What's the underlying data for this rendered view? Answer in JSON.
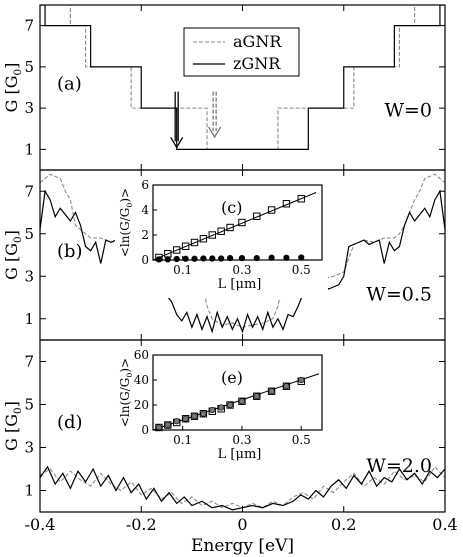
{
  "chart_data": {
    "type": "line",
    "xlabel": "Energy [eV]",
    "xlim": [
      -0.4,
      0.4
    ],
    "xticks": [
      -0.4,
      -0.2,
      0,
      0.2,
      0.4
    ],
    "xtick_labels": [
      "-0.4",
      "-0.2",
      "0",
      "0.2",
      "0.4"
    ],
    "legend": {
      "placement": "top-center",
      "entries": [
        "aGNR",
        "zGNR"
      ]
    },
    "panels": [
      {
        "panel_label": "(a)",
        "annotation": "W=0",
        "ylabel": "G [G",
        "ylabel_sub": "0",
        "ylabel_tail": "]",
        "ylim": [
          0,
          8
        ],
        "yticks": [
          1,
          3,
          5,
          7
        ],
        "series": [
          {
            "name": "aGNR",
            "style": "dashed",
            "x": [
              -0.4,
              -0.34,
              -0.34,
              -0.31,
              -0.31,
              -0.22,
              -0.22,
              -0.07,
              -0.07,
              0.07,
              0.07,
              0.22,
              0.22,
              0.31,
              0.31,
              0.34,
              0.34,
              0.4
            ],
            "y": [
              9,
              9,
              7,
              7,
              5,
              5,
              3,
              3,
              1,
              1,
              3,
              3,
              5,
              5,
              7,
              7,
              9,
              9
            ]
          },
          {
            "name": "zGNR",
            "style": "solid",
            "x": [
              -0.4,
              -0.39,
              -0.39,
              -0.3,
              -0.3,
              -0.2,
              -0.2,
              -0.13,
              -0.13,
              0.13,
              0.13,
              0.2,
              0.2,
              0.3,
              0.3,
              0.39,
              0.39,
              0.4
            ],
            "y": [
              8,
              8,
              7,
              7,
              5,
              5,
              3,
              3,
              1,
              1,
              3,
              3,
              5,
              5,
              7,
              7,
              8,
              8
            ]
          }
        ],
        "arrows": [
          {
            "x": -0.13,
            "y_from": 3.8,
            "y_to": 1.1,
            "style": "solid"
          },
          {
            "x": -0.055,
            "y_from": 3.8,
            "y_to": 1.6,
            "style": "dashed"
          }
        ]
      },
      {
        "panel_label": "(b)",
        "annotation": "W=0.5",
        "ylabel": "G [G",
        "ylabel_sub": "0",
        "ylabel_tail": "]",
        "ylim": [
          0,
          8
        ],
        "yticks": [
          1,
          3,
          5,
          7
        ],
        "series": [
          {
            "name": "aGNR",
            "style": "dashed",
            "x": [
              -0.4,
              -0.38,
              -0.36,
              -0.35,
              -0.34,
              -0.33,
              -0.31,
              -0.3,
              -0.28,
              -0.26,
              -0.24,
              -0.22,
              -0.2,
              -0.18,
              -0.16,
              -0.14,
              -0.12,
              -0.1,
              -0.08,
              -0.07,
              -0.06,
              -0.04,
              -0.02,
              0,
              0.02,
              0.04,
              0.06,
              0.07,
              0.08,
              0.1,
              0.12,
              0.14,
              0.16,
              0.18,
              0.2,
              0.22,
              0.24,
              0.26,
              0.28,
              0.3,
              0.31,
              0.32,
              0.34,
              0.35,
              0.36,
              0.38,
              0.4
            ],
            "y": [
              7.4,
              7.8,
              7.6,
              7.0,
              6.6,
              5.4,
              5.0,
              4.8,
              4.8,
              4.6,
              4.7,
              4.5,
              3.2,
              3.0,
              2.9,
              3.0,
              2.8,
              2.9,
              2.7,
              1.6,
              1.0,
              0.7,
              0.8,
              0.6,
              0.7,
              0.8,
              1.0,
              1.6,
              2.7,
              2.9,
              2.8,
              3.0,
              2.9,
              3.0,
              3.2,
              4.5,
              4.7,
              4.6,
              4.8,
              4.8,
              5.0,
              5.4,
              6.6,
              7.0,
              7.6,
              7.8,
              7.4
            ]
          },
          {
            "name": "zGNR",
            "style": "solid",
            "x": [
              -0.4,
              -0.39,
              -0.38,
              -0.37,
              -0.36,
              -0.35,
              -0.34,
              -0.33,
              -0.32,
              -0.31,
              -0.3,
              -0.29,
              -0.28,
              -0.27,
              -0.26,
              -0.25,
              -0.24,
              -0.23,
              -0.22,
              -0.21,
              -0.2,
              -0.19,
              -0.18,
              -0.17,
              -0.16,
              -0.15,
              -0.14,
              -0.13,
              -0.12,
              -0.11,
              -0.1,
              -0.09,
              -0.08,
              -0.07,
              -0.06,
              -0.05,
              -0.04,
              -0.03,
              -0.02,
              -0.01,
              0,
              0.01,
              0.02,
              0.03,
              0.04,
              0.05,
              0.06,
              0.07,
              0.08,
              0.09,
              0.1,
              0.11,
              0.12,
              0.13,
              0.14,
              0.15,
              0.16,
              0.17,
              0.18,
              0.19,
              0.2,
              0.21,
              0.22,
              0.23,
              0.24,
              0.25,
              0.26,
              0.27,
              0.28,
              0.29,
              0.3,
              0.31,
              0.32,
              0.33,
              0.34,
              0.35,
              0.36,
              0.37,
              0.38,
              0.39,
              0.4
            ],
            "y": [
              5.2,
              7.0,
              6.6,
              5.8,
              6.2,
              5.9,
              5.6,
              6.0,
              5.4,
              4.4,
              4.2,
              4.6,
              3.6,
              4.7,
              4.6,
              4.7,
              4.5,
              4.4,
              3.1,
              2.5,
              2.4,
              2.6,
              2.3,
              2.5,
              2.4,
              2.1,
              1.8,
              1.2,
              0.9,
              1.3,
              0.6,
              1.2,
              0.5,
              1.1,
              0.4,
              1.3,
              0.6,
              1.1,
              0.5,
              1.0,
              0.4,
              1.2,
              0.6,
              1.1,
              0.5,
              1.3,
              0.6,
              1.0,
              0.5,
              1.2,
              1.1,
              1.6,
              2.2,
              2.4,
              2.5,
              2.3,
              2.6,
              2.4,
              2.5,
              2.6,
              3.0,
              4.4,
              4.5,
              4.6,
              4.7,
              4.5,
              4.6,
              4.7,
              3.6,
              4.6,
              4.2,
              4.4,
              5.4,
              6.0,
              5.6,
              5.9,
              6.2,
              5.8,
              6.6,
              7.0,
              5.2
            ]
          }
        ],
        "inset": {
          "panel_label": "(c)",
          "ylabel": "<ln(G/G",
          "ylabel_sub": "0",
          "ylabel_tail": ")>",
          "xlabel": "L [μm]",
          "xlim": [
            0,
            0.57
          ],
          "ylim": [
            0,
            6
          ],
          "xticks": [
            0.1,
            0.3,
            0.5
          ],
          "xtick_labels": [
            "0.1",
            "0.3",
            "0.5"
          ],
          "yticks": [
            0,
            2,
            4,
            6
          ],
          "ytick_labels": [
            "0",
            "2",
            "4",
            "6"
          ],
          "series": [
            {
              "name": "aGNR",
              "marker": "open-square",
              "x": [
                0.02,
                0.05,
                0.08,
                0.11,
                0.14,
                0.17,
                0.2,
                0.23,
                0.26,
                0.3,
                0.35,
                0.4,
                0.45,
                0.5
              ],
              "y": [
                0.2,
                0.5,
                0.8,
                1.1,
                1.4,
                1.7,
                2.0,
                2.3,
                2.6,
                3.0,
                3.5,
                4.0,
                4.5,
                4.9
              ]
            },
            {
              "name": "zGNR",
              "marker": "filled-circle",
              "x": [
                0.02,
                0.05,
                0.08,
                0.11,
                0.14,
                0.17,
                0.2,
                0.23,
                0.26,
                0.3,
                0.35,
                0.4,
                0.45,
                0.5
              ],
              "y": [
                0.05,
                0.05,
                0.08,
                0.1,
                0.1,
                0.12,
                0.12,
                0.12,
                0.15,
                0.15,
                0.15,
                0.18,
                0.18,
                0.2
              ]
            }
          ],
          "fit_line": {
            "x": [
              0,
              0.55
            ],
            "y": [
              0,
              5.4
            ]
          }
        }
      },
      {
        "panel_label": "(d)",
        "annotation": "W=2.0",
        "ylabel": "G [G",
        "ylabel_sub": "0",
        "ylabel_tail": "]",
        "ylim": [
          0,
          8
        ],
        "yticks": [
          1,
          3,
          5,
          7
        ],
        "series": [
          {
            "name": "aGNR",
            "style": "dashed",
            "x": [
              -0.4,
              -0.38,
              -0.36,
              -0.34,
              -0.32,
              -0.3,
              -0.28,
              -0.26,
              -0.24,
              -0.22,
              -0.2,
              -0.18,
              -0.16,
              -0.14,
              -0.12,
              -0.1,
              -0.08,
              -0.06,
              -0.04,
              -0.02,
              0,
              0.02,
              0.04,
              0.06,
              0.08,
              0.1,
              0.12,
              0.14,
              0.16,
              0.18,
              0.2,
              0.22,
              0.24,
              0.26,
              0.28,
              0.3,
              0.32,
              0.34,
              0.36,
              0.38,
              0.4
            ],
            "y": [
              1.7,
              2.0,
              1.4,
              1.9,
              1.5,
              1.2,
              1.8,
              1.3,
              1.0,
              1.4,
              0.8,
              1.1,
              0.6,
              0.9,
              0.4,
              0.7,
              0.3,
              0.5,
              0.2,
              0.4,
              0.2,
              0.4,
              0.2,
              0.5,
              0.3,
              0.7,
              0.9,
              0.6,
              1.2,
              0.9,
              1.4,
              1.8,
              1.2,
              1.6,
              1.3,
              1.9,
              1.5,
              1.7,
              1.4,
              2.1,
              1.6
            ]
          },
          {
            "name": "zGNR",
            "style": "solid",
            "x": [
              -0.4,
              -0.385,
              -0.37,
              -0.355,
              -0.34,
              -0.325,
              -0.31,
              -0.295,
              -0.28,
              -0.265,
              -0.25,
              -0.235,
              -0.22,
              -0.205,
              -0.19,
              -0.175,
              -0.16,
              -0.145,
              -0.13,
              -0.115,
              -0.1,
              -0.08,
              -0.06,
              -0.04,
              -0.02,
              0,
              0.02,
              0.04,
              0.06,
              0.08,
              0.1,
              0.115,
              0.13,
              0.145,
              0.16,
              0.175,
              0.19,
              0.205,
              0.22,
              0.235,
              0.25,
              0.265,
              0.28,
              0.295,
              0.31,
              0.325,
              0.34,
              0.355,
              0.37,
              0.385,
              0.4
            ],
            "y": [
              1.6,
              2.1,
              1.3,
              1.8,
              1.1,
              1.9,
              1.4,
              2.0,
              1.2,
              1.7,
              1.0,
              1.6,
              0.9,
              1.3,
              0.6,
              1.1,
              0.5,
              0.9,
              0.4,
              0.7,
              0.3,
              0.5,
              0.2,
              0.3,
              0.1,
              0.2,
              0.3,
              0.2,
              0.4,
              0.3,
              0.5,
              0.8,
              0.6,
              1.0,
              0.7,
              1.2,
              1.5,
              1.1,
              1.7,
              1.3,
              1.9,
              1.2,
              1.6,
              1.4,
              2.0,
              1.5,
              1.8,
              1.3,
              1.9,
              1.6,
              2.0
            ]
          }
        ],
        "inset": {
          "panel_label": "(e)",
          "ylabel": "<ln(G/G",
          "ylabel_sub": "0",
          "ylabel_tail": ")>",
          "xlabel": "L [μm]",
          "xlim": [
            0,
            0.57
          ],
          "ylim": [
            0,
            60
          ],
          "xticks": [
            0.1,
            0.3,
            0.5
          ],
          "xtick_labels": [
            "0.1",
            "0.3",
            "0.5"
          ],
          "yticks": [
            0,
            20,
            40,
            60
          ],
          "ytick_labels": [
            "0",
            "20",
            "40",
            "60"
          ],
          "series": [
            {
              "name": "aGNR",
              "marker": "open-square",
              "x": [
                0.02,
                0.05,
                0.08,
                0.11,
                0.14,
                0.17,
                0.2,
                0.23,
                0.26,
                0.3,
                0.35,
                0.4,
                0.45,
                0.5
              ],
              "y": [
                2,
                4,
                6,
                9,
                11,
                13,
                15,
                17,
                20,
                23,
                27,
                31,
                35,
                39
              ]
            },
            {
              "name": "zGNR",
              "marker": "filled-circle",
              "x": [
                0.02,
                0.05,
                0.08,
                0.11,
                0.14,
                0.17,
                0.2,
                0.23,
                0.26,
                0.3,
                0.35,
                0.4,
                0.45,
                0.5
              ],
              "y": [
                2,
                4,
                7,
                9,
                11,
                13,
                16,
                18,
                20,
                23,
                27,
                31,
                35,
                40
              ]
            }
          ],
          "fit_line": {
            "x": [
              0,
              0.56
            ],
            "y": [
              0,
              45
            ]
          }
        }
      }
    ]
  }
}
